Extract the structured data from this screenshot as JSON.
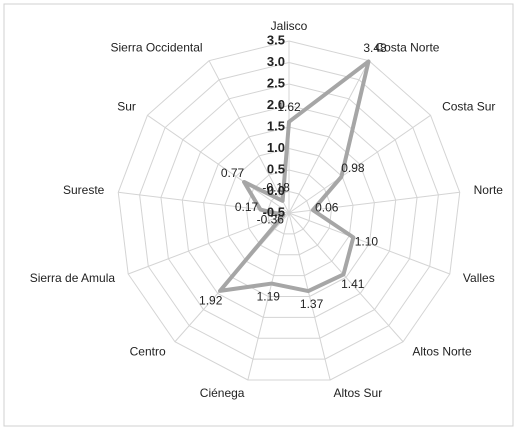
{
  "chart_data": {
    "type": "radar",
    "categories": [
      "Jalisco",
      "Costa Norte",
      "Costa Sur",
      "Norte",
      "Valles",
      "Altos Norte",
      "Altos Sur",
      "Ciénega",
      "Centro",
      "Sierra de Amula",
      "Sureste",
      "Sur",
      "Sierra Occidental"
    ],
    "values": [
      1.62,
      3.48,
      0.98,
      0.06,
      1.1,
      1.41,
      1.37,
      1.19,
      1.92,
      -0.36,
      0.17,
      0.77,
      -0.18
    ],
    "value_labels": [
      "1.62",
      "3.48",
      "0.98",
      "0.06",
      "1.10",
      "1.41",
      "1.37",
      "1.19",
      "1.92",
      "-0.36",
      "0.17",
      "0.77",
      "-0.18"
    ],
    "color": "#a6a6a6",
    "ylim": [
      -0.5,
      3.5
    ],
    "yticks": [
      -0.5,
      {
        "value": 0,
        "label": "0.0"
      },
      0.5,
      {
        "value": 1,
        "label": "1.0"
      },
      1.5,
      {
        "value": 2,
        "label": "2.0"
      },
      2.5,
      {
        "value": 3,
        "label": "3.0"
      },
      3.5
    ],
    "grid": true
  }
}
